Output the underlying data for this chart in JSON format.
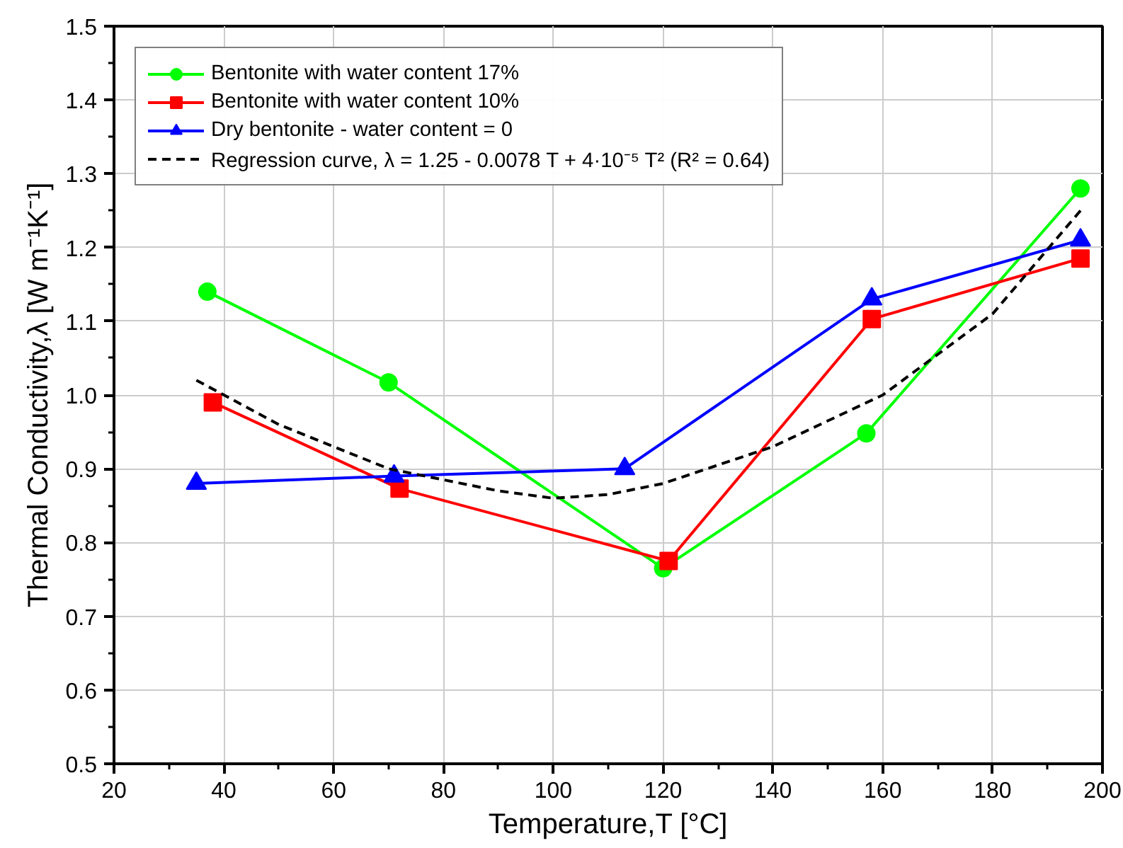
{
  "chart_data": {
    "type": "line",
    "xlabel": "Temperature,T [°C]",
    "ylabel": "Thermal Conductivity,λ [W m⁻¹K⁻¹]",
    "xlim": [
      20,
      200
    ],
    "ylim": [
      0.5,
      1.5
    ],
    "xticks": [
      20,
      40,
      60,
      80,
      100,
      120,
      140,
      160,
      180,
      200
    ],
    "yticks": [
      0.5,
      0.6,
      0.7,
      0.8,
      0.9,
      {
        "value": 1,
        "label": "1.0"
      },
      1.1,
      1.2,
      1.3,
      1.4,
      1.5
    ],
    "grid": true,
    "legend": "top left",
    "line_style": "solid",
    "series": [
      {
        "name": "Bentonite with water content 17%",
        "color": "#00ff00",
        "marker": "circle",
        "x": [
          37,
          70,
          120,
          157,
          196
        ],
        "values": [
          1.14,
          1.017,
          0.765,
          0.948,
          1.28
        ]
      },
      {
        "name": "Bentonite with water content 10%",
        "color": "#ff0000",
        "marker": "square",
        "x": [
          38,
          72,
          121,
          158,
          196
        ],
        "values": [
          0.99,
          0.873,
          0.775,
          1.103,
          1.185
        ]
      },
      {
        "name": "Dry bentonite - water content = 0",
        "color": "#0000ff",
        "marker": "triangle",
        "x": [
          35,
          71,
          113,
          158,
          196
        ],
        "values": [
          0.88,
          0.89,
          0.9,
          1.13,
          1.21
        ]
      },
      {
        "name": "Regression curve, λ = 1.25 - 0.0078 T + 4·10⁻⁵ T² (R² = 0.64)",
        "color": "#000000",
        "marker": "none",
        "line_style": "dashed",
        "x": [
          35,
          50,
          70,
          90,
          100,
          110,
          120,
          140,
          160,
          180,
          196
        ],
        "values": [
          1.02,
          0.96,
          0.9,
          0.87,
          0.86,
          0.865,
          0.88,
          0.93,
          1.0,
          1.11,
          1.25
        ]
      }
    ]
  }
}
